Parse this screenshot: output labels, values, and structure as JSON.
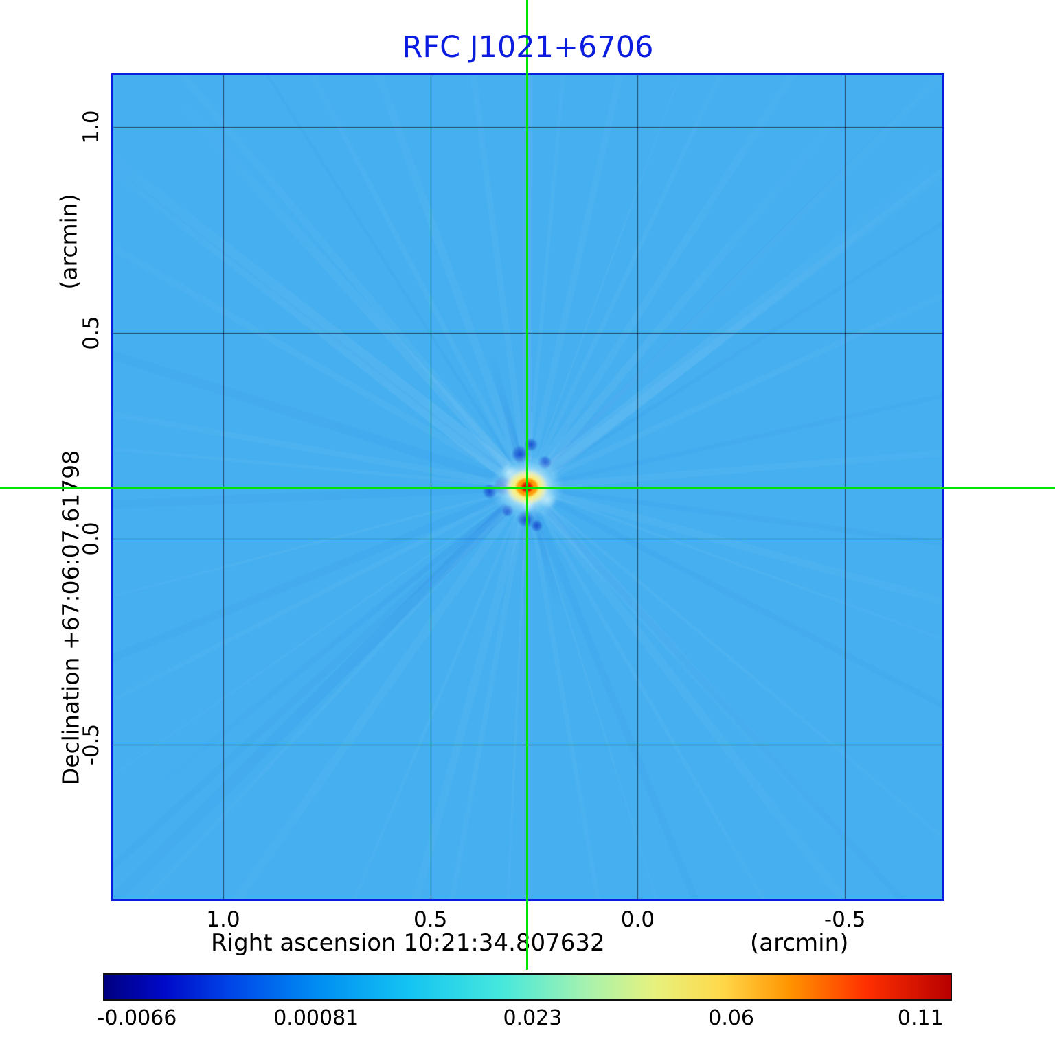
{
  "title": "RFC J1021+6706",
  "title_color": "#0a1ce0",
  "axes": {
    "y_label": "Declination  +67:06:07.61798",
    "y_unit": "(arcmin)",
    "x_label": "Right ascension  10:21:34.807632",
    "x_unit": "(arcmin)",
    "x_ticks": [
      "1.0",
      "0.5",
      "0.0",
      "-0.5"
    ],
    "y_ticks": [
      "1.0",
      "0.5",
      "0.0",
      "-0.5"
    ]
  },
  "colorbar": {
    "tick_labels": [
      "-0.0066",
      "0.00081",
      "0.023",
      "0.06",
      "0.11"
    ],
    "tick_positions": [
      0.04,
      0.251,
      0.506,
      0.74,
      0.963
    ],
    "gradient": [
      "#000080 0%",
      "#0009c8 7%",
      "#0046e8 15%",
      "#008cf2 25%",
      "#14c4f2 36%",
      "#46e8dc 47%",
      "#a6f2ae 57%",
      "#e6f27e 65%",
      "#ffd84a 73%",
      "#ff9400 81%",
      "#ff3000 90%",
      "#b80000 100%"
    ]
  },
  "chart_data": {
    "type": "heatmap",
    "title": "RFC J1021+6706",
    "xlabel": "Right ascension 10:21:34.807632 (arcmin)",
    "ylabel": "Declination +67:06:07.61798 (arcmin)",
    "x_range": [
      1.265,
      -0.735
    ],
    "y_range": [
      -0.875,
      1.125
    ],
    "x_ticks": [
      1.0,
      0.5,
      0.0,
      -0.5
    ],
    "y_ticks": [
      1.0,
      0.5,
      0.0,
      -0.5
    ],
    "grid": true,
    "colormap": "jet",
    "colorbar_ticks": [
      -0.0066,
      0.00081,
      0.023,
      0.06,
      0.11
    ],
    "peak_value": 0.11,
    "background_value": 0.0008,
    "source_center_arcmin": [
      0.267,
      0.125
    ],
    "colors": {
      "background": "#45aff0",
      "grid": "rgba(0,0,0,0.6)",
      "crosshair": "#00e400",
      "border": "#0a1ce0",
      "core": "#cc0000",
      "inner_ring": "#ff8c00",
      "outer_ring": "#ffe428",
      "halo": "#fffadc",
      "sidelobe": "#1545cc"
    }
  }
}
